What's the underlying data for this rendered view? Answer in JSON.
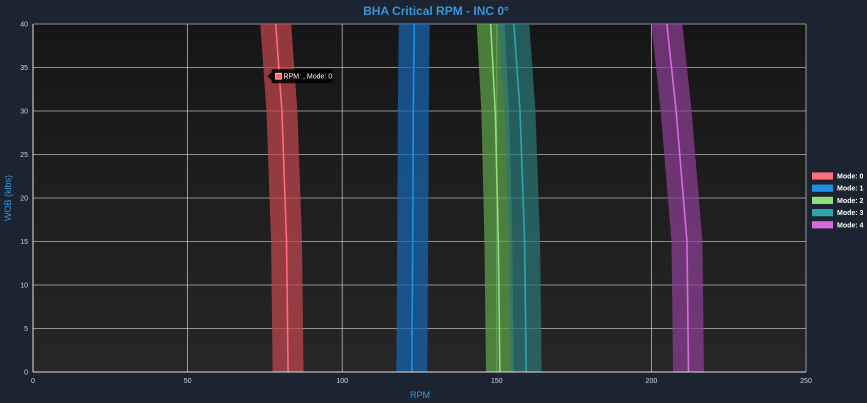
{
  "chart_data": {
    "type": "area",
    "title": "BHA Critical RPM - INC 0°",
    "xlabel": "RPM",
    "ylabel": "WOB (klbs)",
    "xlim": [
      0,
      250
    ],
    "ylim": [
      0,
      40
    ],
    "x_ticks": [
      0,
      50,
      100,
      150,
      200,
      250
    ],
    "y_ticks": [
      0,
      5,
      10,
      15,
      20,
      25,
      30,
      35,
      40
    ],
    "grid": true,
    "legend_position": "right",
    "series": [
      {
        "name": "Mode: 0",
        "color": "#ff6b78",
        "fill": "#c0474f",
        "points": [
          [
            82.5,
            0
          ],
          [
            82.0,
            15
          ],
          [
            80.5,
            30
          ],
          [
            78.5,
            40
          ]
        ],
        "band_half_width": 5
      },
      {
        "name": "Mode: 1",
        "color": "#1e90e6",
        "fill": "#1565b0",
        "points": [
          [
            122.5,
            0
          ],
          [
            122.8,
            15
          ],
          [
            123.0,
            30
          ],
          [
            123.3,
            40
          ]
        ],
        "band_half_width": 5
      },
      {
        "name": "Mode: 2",
        "color": "#8ce07a",
        "fill": "#5ea34a",
        "points": [
          [
            151.0,
            0
          ],
          [
            150.5,
            15
          ],
          [
            149.5,
            30
          ],
          [
            148.0,
            40
          ]
        ],
        "band_half_width": 4.5
      },
      {
        "name": "Mode: 3",
        "color": "#2aa6ad",
        "fill": "#2a7777",
        "points": [
          [
            159.5,
            0
          ],
          [
            159.0,
            15
          ],
          [
            157.5,
            30
          ],
          [
            155.5,
            40
          ]
        ],
        "band_half_width": 5
      },
      {
        "name": "Mode: 4",
        "color": "#d46be0",
        "fill": "#8e3e96",
        "points": [
          [
            212.0,
            0
          ],
          [
            211.5,
            15
          ],
          [
            208.0,
            30
          ],
          [
            205.0,
            40
          ]
        ],
        "band_half_width": 5
      }
    ],
    "tooltip": {
      "text": "RPM: , Mode: 0",
      "series_index": 0,
      "anchor": [
        76.5,
        34
      ]
    }
  }
}
